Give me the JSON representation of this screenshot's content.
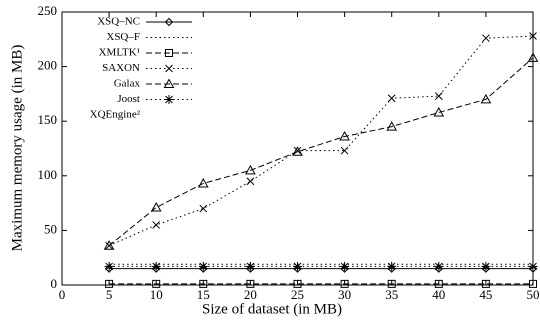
{
  "chart_data": {
    "type": "line",
    "xlabel": "Size of dataset (in MB)",
    "ylabel": "Maximum memory usage (in MB)",
    "x": [
      5,
      10,
      15,
      20,
      25,
      30,
      35,
      40,
      45,
      50
    ],
    "series": [
      {
        "name": "XSQ–NC",
        "color": "#000",
        "dash": "solid",
        "marker": "diamond",
        "values": [
          15,
          15,
          15,
          15,
          15,
          15,
          15,
          15,
          15,
          15
        ]
      },
      {
        "name": "XSQ–F",
        "color": "#000",
        "dash": "dotted",
        "marker": "none",
        "values": [
          19,
          19,
          19,
          19,
          19,
          19,
          19,
          19,
          19,
          19
        ]
      },
      {
        "name": "XMLTK¹",
        "color": "#000",
        "dash": "dashed",
        "marker": "square",
        "values": [
          1,
          1,
          1,
          1,
          1,
          1,
          1,
          1,
          1,
          1
        ]
      },
      {
        "name": "SAXON",
        "color": "#000",
        "dash": "dotted",
        "marker": "cross",
        "values": [
          36,
          55,
          70,
          95,
          123,
          123,
          171,
          173,
          226,
          228
        ]
      },
      {
        "name": "Galax",
        "color": "#000",
        "dash": "dashed",
        "marker": "triangle",
        "values": [
          36,
          71,
          93,
          105,
          122,
          136,
          145,
          158,
          170,
          208
        ]
      },
      {
        "name": "Joost",
        "color": "#000",
        "dash": "dotted",
        "marker": "star",
        "values": [
          17,
          17,
          17,
          17,
          17,
          17,
          17,
          17,
          17,
          17
        ]
      },
      {
        "name": "XQEngine²",
        "color": "#000",
        "dash": "none",
        "marker": "none",
        "values": [
          null,
          null,
          null,
          null,
          null,
          null,
          null,
          null,
          null,
          null
        ]
      }
    ],
    "xlim": [
      0,
      50
    ],
    "xticks": [
      0,
      5,
      10,
      15,
      20,
      25,
      30,
      35,
      40,
      45,
      50
    ],
    "ylim": [
      0,
      250
    ],
    "yticks": [
      0,
      50,
      100,
      150,
      200,
      250
    ],
    "legend": "top-left"
  }
}
